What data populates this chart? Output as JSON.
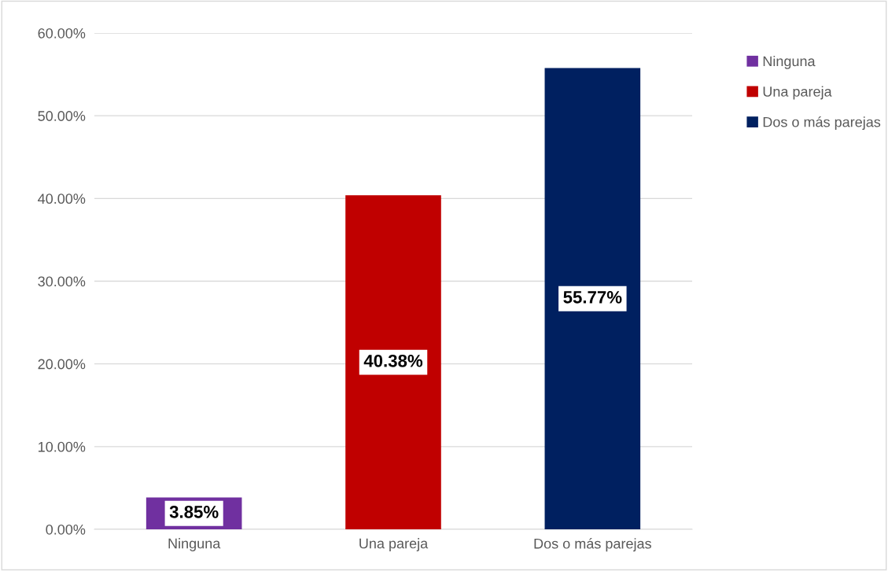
{
  "chart_data": {
    "type": "bar",
    "categories": [
      "Ninguna",
      "Una pareja",
      "Dos o más parejas"
    ],
    "series": [
      {
        "name": "Ninguna",
        "color": "#7030a0",
        "values": [
          3.85,
          null,
          null
        ],
        "value_labels": [
          "3.85%",
          null,
          null
        ]
      },
      {
        "name": "Una pareja",
        "color": "#c00000",
        "values": [
          null,
          40.38,
          null
        ],
        "value_labels": [
          null,
          "40.38%",
          null
        ]
      },
      {
        "name": "Dos o más parejas",
        "color": "#002060",
        "values": [
          null,
          null,
          55.77
        ],
        "value_labels": [
          null,
          null,
          "55.77%"
        ]
      }
    ],
    "ylim": [
      0,
      60
    ],
    "yticks": [
      {
        "value": 0,
        "label": "0.00%"
      },
      {
        "value": 10,
        "label": "10.00%"
      },
      {
        "value": 20,
        "label": "20.00%"
      },
      {
        "value": 30,
        "label": "30.00%"
      },
      {
        "value": 40,
        "label": "40.00%"
      },
      {
        "value": 50,
        "label": "50.00%"
      },
      {
        "value": 60,
        "label": "60.00%"
      }
    ],
    "grid": "y",
    "legend": "right"
  }
}
